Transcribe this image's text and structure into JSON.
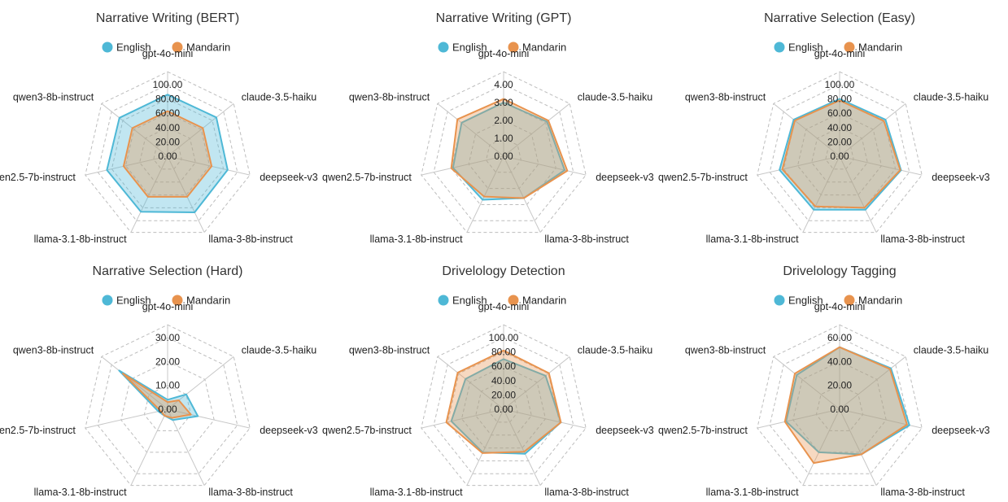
{
  "colors": {
    "english": "#4EB8D6",
    "mandarin": "#E8934E"
  },
  "chart_data": [
    {
      "type": "radar",
      "title": "Narrative Writing (BERT)",
      "categories": [
        "gpt-4o-mini",
        "claude-3.5-haiku",
        "deepseek-v3",
        "llama-3-8b-instruct",
        "llama-3.1-8b-instruct",
        "qwen2.5-7b-instruct",
        "qwen3-8b-instruct"
      ],
      "ticks": [
        "0.00",
        "20.00",
        "40.00",
        "60.00",
        "80.00",
        "100.00"
      ],
      "rmax": 100,
      "legend": [
        "English",
        "Mandarin"
      ],
      "series": [
        {
          "name": "English",
          "values": [
            86,
            87,
            86,
            87,
            86,
            87,
            86
          ]
        },
        {
          "name": "Mandarin",
          "values": [
            63,
            63,
            63,
            63,
            63,
            63,
            63
          ]
        }
      ]
    },
    {
      "type": "radar",
      "title": "Narrative Writing (GPT)",
      "categories": [
        "gpt-4o-mini",
        "claude-3.5-haiku",
        "deepseek-v3",
        "llama-3-8b-instruct",
        "llama-3.1-8b-instruct",
        "qwen2.5-7b-instruct",
        "qwen3-8b-instruct"
      ],
      "ticks": [
        "0.00",
        "1.00",
        "2.00",
        "3.00",
        "4.00"
      ],
      "rmax": 4,
      "legend": [
        "English",
        "Mandarin"
      ],
      "series": [
        {
          "name": "English",
          "values": [
            3.0,
            3.1,
            3.5,
            2.6,
            2.7,
            2.9,
            3.0
          ]
        },
        {
          "name": "Mandarin",
          "values": [
            3.2,
            3.2,
            3.65,
            2.6,
            2.5,
            3.0,
            3.3
          ]
        }
      ]
    },
    {
      "type": "radar",
      "title": "Narrative Selection (Easy)",
      "categories": [
        "gpt-4o-mini",
        "claude-3.5-haiku",
        "deepseek-v3",
        "llama-3-8b-instruct",
        "llama-3.1-8b-instruct",
        "qwen2.5-7b-instruct",
        "qwen3-8b-instruct"
      ],
      "ticks": [
        "0.00",
        "20.00",
        "40.00",
        "60.00",
        "80.00",
        "100.00"
      ],
      "rmax": 100,
      "legend": [
        "English",
        "Mandarin"
      ],
      "series": [
        {
          "name": "English",
          "values": [
            80,
            82,
            88,
            83,
            83,
            86,
            82
          ]
        },
        {
          "name": "Mandarin",
          "values": [
            78,
            79,
            87,
            80,
            78,
            82,
            80
          ]
        }
      ]
    },
    {
      "type": "radar",
      "title": "Narrative Selection (Hard)",
      "categories": [
        "gpt-4o-mini",
        "claude-3.5-haiku",
        "deepseek-v3",
        "llama-3-8b-instruct",
        "llama-3.1-8b-instruct",
        "qwen2.5-7b-instruct",
        "qwen3-8b-instruct"
      ],
      "ticks": [
        "0.00",
        "10.00",
        "20.00",
        "30.00"
      ],
      "rmax": 30,
      "legend": [
        "English",
        "Mandarin"
      ],
      "series": [
        {
          "name": "English",
          "values": [
            4,
            10,
            13,
            5,
            3,
            4,
            26
          ]
        },
        {
          "name": "Mandarin",
          "values": [
            3,
            6,
            10,
            4,
            3,
            3,
            24
          ]
        }
      ]
    },
    {
      "type": "radar",
      "title": "Drivelology Detection",
      "categories": [
        "gpt-4o-mini",
        "claude-3.5-haiku",
        "deepseek-v3",
        "llama-3-8b-instruct",
        "llama-3.1-8b-instruct",
        "qwen2.5-7b-instruct",
        "qwen3-8b-instruct"
      ],
      "ticks": [
        "0.00",
        "20.00",
        "40.00",
        "60.00",
        "80.00",
        "100.00"
      ],
      "rmax": 100,
      "legend": [
        "English",
        "Mandarin"
      ],
      "series": [
        {
          "name": "English",
          "values": [
            70,
            75,
            82,
            69,
            67,
            75,
            68
          ]
        },
        {
          "name": "Mandarin",
          "values": [
            82,
            81,
            82,
            66,
            68,
            82,
            82
          ]
        }
      ]
    },
    {
      "type": "radar",
      "title": "Drivelology Tagging",
      "categories": [
        "gpt-4o-mini",
        "claude-3.5-haiku",
        "deepseek-v3",
        "llama-3-8b-instruct",
        "llama-3.1-8b-instruct",
        "qwen2.5-7b-instruct",
        "qwen3-8b-instruct"
      ],
      "ticks": [
        "0.00",
        "20.00",
        "40.00",
        "60.00"
      ],
      "rmax": 60,
      "legend": [
        "English",
        "Mandarin"
      ],
      "series": [
        {
          "name": "English",
          "values": [
            52,
            55,
            60,
            42,
            40,
            46,
            46
          ]
        },
        {
          "name": "Mandarin",
          "values": [
            52,
            54,
            58,
            42,
            50,
            47,
            48
          ]
        }
      ]
    }
  ]
}
